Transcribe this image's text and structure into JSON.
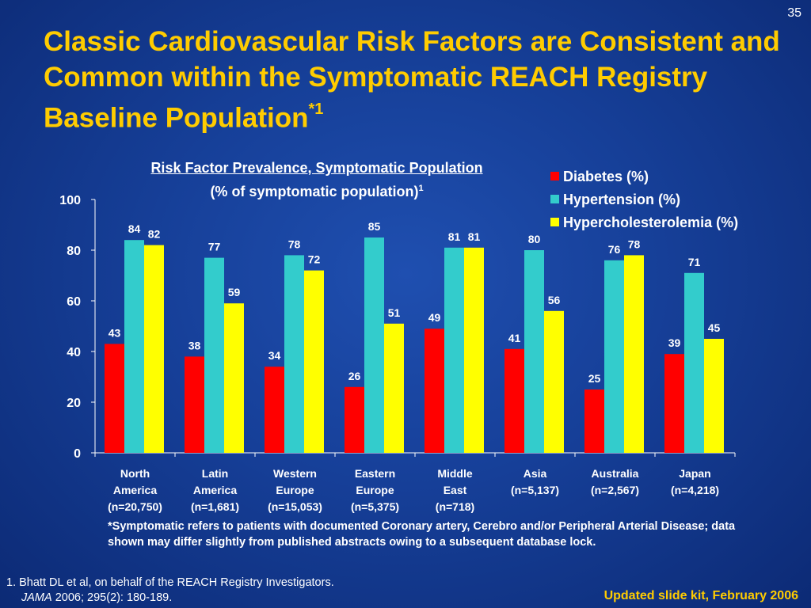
{
  "slide_number": "35",
  "title": "Classic Cardiovascular Risk Factors are Consistent and Common within the Symptomatic REACH Registry Baseline Population",
  "title_superscript": "*1",
  "colors": {
    "background": "#163f98",
    "title": "#ffcc00",
    "diabetes": "#ff0000",
    "hypertension": "#33cccc",
    "hypercholesterolemia": "#ffff00"
  },
  "chart_data": {
    "type": "bar",
    "title": "Risk Factor Prevalence, Symptomatic Population",
    "subtitle": "(% of symptomatic population)",
    "subtitle_superscript": "1",
    "categories": [
      [
        "North",
        "America",
        "(n=20,750)"
      ],
      [
        "Latin",
        "America",
        "(n=1,681)"
      ],
      [
        "Western",
        "Europe",
        "(n=15,053)"
      ],
      [
        "Eastern",
        "Europe",
        "(n=5,375)"
      ],
      [
        "Middle",
        "East",
        "(n=718)"
      ],
      [
        "Asia",
        "(n=5,137)"
      ],
      [
        "Australia",
        "(n=2,567)"
      ],
      [
        "Japan",
        "(n=4,218)"
      ]
    ],
    "series": [
      {
        "name": "Diabetes (%)",
        "color": "#ff0000",
        "values": [
          43,
          38,
          34,
          26,
          49,
          41,
          25,
          39
        ]
      },
      {
        "name": "Hypertension (%)",
        "color": "#33cccc",
        "values": [
          84,
          77,
          78,
          85,
          81,
          80,
          76,
          71
        ]
      },
      {
        "name": "Hypercholesterolemia (%)",
        "color": "#ffff00",
        "values": [
          82,
          59,
          72,
          51,
          81,
          56,
          78,
          45
        ]
      }
    ],
    "ylim": [
      0,
      100
    ],
    "yticks": [
      0,
      20,
      40,
      60,
      80,
      100
    ],
    "grid": false,
    "legend": "top-right"
  },
  "footnote": "*Symptomatic refers to patients with documented Coronary artery, Cerebro and/or Peripheral Arterial Disease; data shown may differ slightly from published abstracts owing to a subsequent database lock.",
  "reference": {
    "line1": "1. Bhatt DL et al, on behalf of the REACH Registry Investigators.",
    "journal": "JAMA",
    "citation": "2006; 295(2): 180-189."
  },
  "updated_note": "Updated slide kit, February 2006"
}
